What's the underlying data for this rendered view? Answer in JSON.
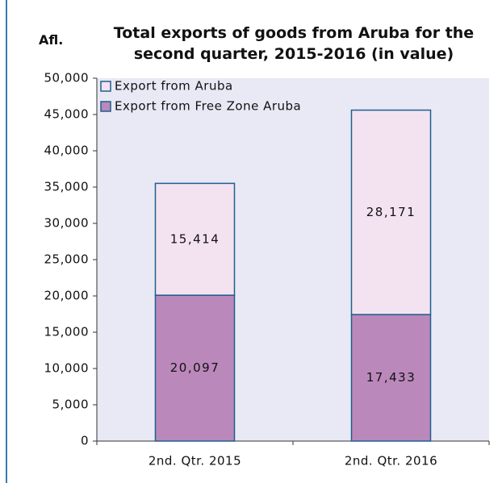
{
  "chart_data": {
    "type": "stacked_bar",
    "title": "Total exports of goods from Aruba for the second quarter, 2015-2016 (in value)",
    "y_label": "Afl.",
    "categories": [
      "2nd. Qtr. 2015",
      "2nd. Qtr. 2016"
    ],
    "series": [
      {
        "name": "Export from Free Zone Aruba",
        "color": "#bb88bb",
        "values": [
          20097,
          17433
        ],
        "value_labels": [
          "20,097",
          "17,433"
        ]
      },
      {
        "name": "Export from Aruba",
        "color": "#f3e3f1",
        "values": [
          15414,
          28171
        ],
        "value_labels": [
          "15,414",
          "28,171"
        ]
      }
    ],
    "ylim": [
      0,
      50000
    ],
    "yticks": [
      0,
      {
        "value": 5000,
        "label": "5,000"
      },
      {
        "value": 10000,
        "label": "10,000"
      },
      {
        "value": 15000,
        "label": "15,000"
      },
      {
        "value": 20000,
        "label": "20,000"
      },
      {
        "value": 25000,
        "label": "25,000"
      },
      {
        "value": 30000,
        "label": "30,000"
      },
      {
        "value": 35000,
        "label": "35,000"
      },
      {
        "value": 40000,
        "label": "40,000"
      },
      {
        "value": 45000,
        "label": "45,000"
      },
      {
        "value": 50000,
        "label": "50,000"
      }
    ],
    "legend": "top-left"
  }
}
